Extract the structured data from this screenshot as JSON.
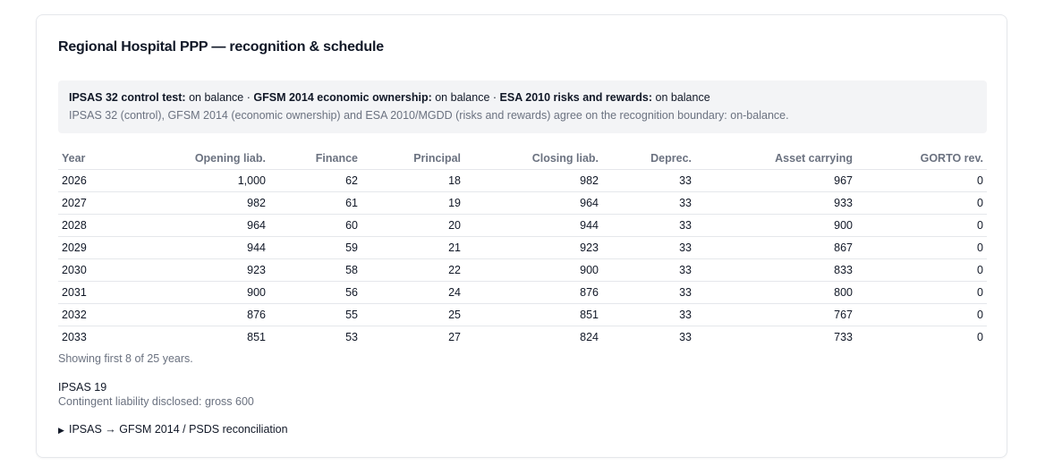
{
  "card": {
    "title": "Regional Hospital PPP — recognition & schedule"
  },
  "tests": {
    "ipsas_label": "IPSAS 32 control test:",
    "ipsas_value": "on balance",
    "gfsm_label": "GFSM 2014 economic ownership:",
    "gfsm_value": "on balance",
    "esa_label": "ESA 2010 risks and rewards:",
    "esa_value": "on balance",
    "separator": "·",
    "summary": "IPSAS 32 (control), GFSM 2014 (economic ownership) and ESA 2010/MGDD (risks and rewards) agree on the recognition boundary: on-balance."
  },
  "schedule": {
    "columns": [
      "Year",
      "Opening liab.",
      "Finance",
      "Principal",
      "Closing liab.",
      "Deprec.",
      "Asset carrying",
      "GORTO rev."
    ],
    "rows": [
      [
        "2026",
        "1,000",
        "62",
        "18",
        "982",
        "33",
        "967",
        "0"
      ],
      [
        "2027",
        "982",
        "61",
        "19",
        "964",
        "33",
        "933",
        "0"
      ],
      [
        "2028",
        "964",
        "60",
        "20",
        "944",
        "33",
        "900",
        "0"
      ],
      [
        "2029",
        "944",
        "59",
        "21",
        "923",
        "33",
        "867",
        "0"
      ],
      [
        "2030",
        "923",
        "58",
        "22",
        "900",
        "33",
        "833",
        "0"
      ],
      [
        "2031",
        "900",
        "56",
        "24",
        "876",
        "33",
        "800",
        "0"
      ],
      [
        "2032",
        "876",
        "55",
        "25",
        "851",
        "33",
        "767",
        "0"
      ],
      [
        "2033",
        "851",
        "53",
        "27",
        "824",
        "33",
        "733",
        "0"
      ]
    ],
    "showing_text": "Showing first 8 of 25 years."
  },
  "ipsas19": {
    "title": "IPSAS 19",
    "note": "Contingent liability disclosed: gross 600"
  },
  "reconciliation": {
    "marker": "▶",
    "label": "IPSAS → GFSM 2014 / PSDS reconciliation"
  }
}
